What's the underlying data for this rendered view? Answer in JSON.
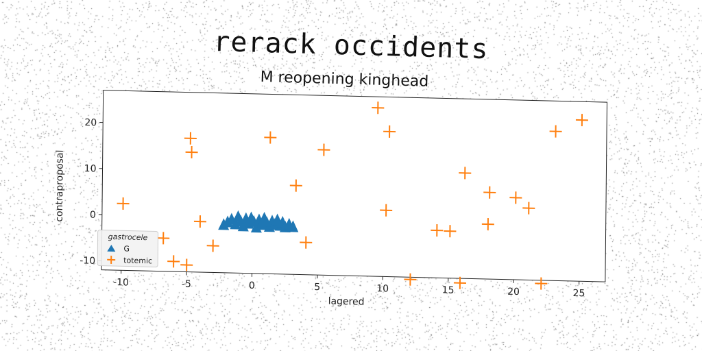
{
  "title": "rerack occidents",
  "chart_data": {
    "type": "scatter",
    "title": "M reopening kinghead",
    "xlabel": "lagered",
    "ylabel": "contraproposal",
    "xlim": [
      -11.5,
      27
    ],
    "ylim": [
      -12,
      27
    ],
    "xticks": [
      -10,
      -5,
      0,
      5,
      10,
      15,
      20,
      25
    ],
    "yticks": [
      -10,
      0,
      10,
      20
    ],
    "grid": false,
    "legend": {
      "title": "gastrocele",
      "placement": "lower-left"
    },
    "series": [
      {
        "name": "G",
        "marker": "triangle",
        "color": "#1f77b4",
        "points": [
          [
            -2.2,
            -1.8
          ],
          [
            -1.9,
            -1.2
          ],
          [
            -1.6,
            -0.6
          ],
          [
            -1.3,
            -1.6
          ],
          [
            -1.1,
            0.0
          ],
          [
            -0.9,
            -1.0
          ],
          [
            -0.7,
            -2.0
          ],
          [
            -0.5,
            -0.4
          ],
          [
            -0.3,
            -1.4
          ],
          [
            -0.1,
            -0.2
          ],
          [
            0.1,
            -1.0
          ],
          [
            0.3,
            -2.2
          ],
          [
            0.5,
            -0.6
          ],
          [
            0.7,
            -1.6
          ],
          [
            0.9,
            -0.2
          ],
          [
            1.1,
            -1.2
          ],
          [
            1.3,
            -2.0
          ],
          [
            1.5,
            -0.8
          ],
          [
            1.7,
            -1.5
          ],
          [
            1.9,
            -0.5
          ],
          [
            2.1,
            -1.7
          ],
          [
            2.3,
            -1.0
          ],
          [
            2.5,
            -2.0
          ],
          [
            2.8,
            -1.4
          ],
          [
            3.1,
            -1.9
          ]
        ]
      },
      {
        "name": "totemic",
        "marker": "plus",
        "color": "#ff7f0e",
        "points": [
          [
            -9.9,
            2.5
          ],
          [
            -6.8,
            -4.8
          ],
          [
            -6.0,
            -9.8
          ],
          [
            -5.0,
            -10.5
          ],
          [
            -4.8,
            17.0
          ],
          [
            -4.7,
            14.0
          ],
          [
            -4.0,
            -1.0
          ],
          [
            -3.0,
            -6.2
          ],
          [
            1.3,
            17.6
          ],
          [
            3.3,
            7.3
          ],
          [
            4.1,
            -5.0
          ],
          [
            5.4,
            15.2
          ],
          [
            9.5,
            24.6
          ],
          [
            10.2,
            2.4
          ],
          [
            10.4,
            19.5
          ],
          [
            12.1,
            -12.5
          ],
          [
            14.1,
            -1.7
          ],
          [
            15.1,
            -1.8
          ],
          [
            15.9,
            -13.0
          ],
          [
            16.2,
            10.9
          ],
          [
            18.0,
            -0.1
          ],
          [
            18.1,
            6.8
          ],
          [
            20.1,
            5.8
          ],
          [
            21.1,
            3.6
          ],
          [
            22.1,
            -12.7
          ],
          [
            23.1,
            20.4
          ],
          [
            25.1,
            23.0
          ]
        ]
      }
    ]
  }
}
